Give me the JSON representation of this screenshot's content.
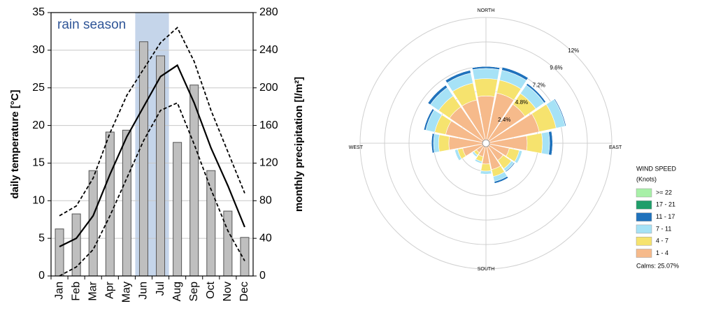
{
  "chart_data": [
    {
      "type": "bar_line",
      "ylabel": "daily temperature [°C]",
      "y2label": "monthly precipitation [l/m²]",
      "categories": [
        "Jan",
        "Feb",
        "Mar",
        "Apr",
        "May",
        "Jun",
        "Jul",
        "Aug",
        "Sep",
        "Oct",
        "Nov",
        "Dec"
      ],
      "ylim": [
        0,
        35
      ],
      "yticks": [
        0,
        5,
        10,
        15,
        20,
        25,
        30,
        35
      ],
      "y2lim": [
        0,
        280
      ],
      "y2ticks": [
        0,
        40,
        80,
        120,
        160,
        200,
        240,
        280
      ],
      "grid": true,
      "highlight": {
        "label": "rain season",
        "start": "Jun",
        "end": "Jul",
        "color": "#c5d5ea"
      },
      "series": [
        {
          "type": "bar",
          "axis": "y2",
          "color": "#bfbfbf",
          "values": [
            50,
            66,
            112,
            153,
            155,
            249,
            234,
            142,
            203,
            112,
            69,
            41
          ]
        },
        {
          "type": "line",
          "style": "dashed",
          "color": "#000000",
          "values": [
            8,
            9.3,
            13,
            19,
            24,
            27.5,
            31,
            33,
            28.5,
            22,
            16.5,
            11
          ]
        },
        {
          "type": "line",
          "style": "solid",
          "color": "#000000",
          "values": [
            3.9,
            5,
            8,
            13.5,
            18.5,
            22.5,
            26.5,
            28,
            23,
            17,
            12,
            6.5
          ]
        },
        {
          "type": "line",
          "style": "dashed",
          "color": "#000000",
          "values": [
            0,
            1.2,
            3.5,
            8,
            13,
            18,
            22,
            23,
            17.5,
            11.5,
            6,
            2
          ]
        }
      ]
    },
    {
      "type": "windrose",
      "categories": [
        "NORTH",
        null,
        null,
        null,
        "EAST",
        null,
        null,
        null,
        "SOUTH",
        null,
        null,
        null,
        "WEST",
        null,
        null,
        null
      ],
      "rlim": [
        0,
        12
      ],
      "rticks": [
        {
          "value": 2.4,
          "label": "2.4%"
        },
        {
          "value": 4.8,
          "label": "4.8%"
        },
        {
          "value": 7.2,
          "label": "7.2%"
        },
        {
          "value": 9.6,
          "label": "9.6%"
        },
        {
          "value": 12,
          "label": "12%"
        }
      ],
      "legend_title": "WIND SPEED",
      "legend_subtitle": "(Knots)",
      "calms": {
        "value": 25.07,
        "label": "Calms: 25.07%"
      },
      "series": [
        {
          "name": ">= 22",
          "color": "#a8f0a8",
          "values": [
            0,
            0,
            0,
            0,
            0,
            0,
            0,
            0,
            0,
            0,
            0,
            0,
            0,
            0,
            0,
            0
          ]
        },
        {
          "name": "17 - 21",
          "color": "#1f9e6a",
          "values": [
            0,
            0,
            0,
            0,
            0,
            0,
            0,
            0,
            0,
            0,
            0,
            0,
            0,
            0,
            0,
            0
          ]
        },
        {
          "name": "11 - 17",
          "color": "#1f72bc",
          "values": [
            0.2,
            0.3,
            0.2,
            0.1,
            0.3,
            0,
            0.1,
            0.2,
            0,
            0,
            0,
            0,
            0.2,
            0.2,
            0.3,
            0.3
          ]
        },
        {
          "name": "7 - 11",
          "color": "#a6e2f6",
          "values": [
            1.0,
            1.0,
            1.0,
            0.9,
            0.7,
            0.3,
            0.3,
            0.5,
            0.3,
            0.2,
            0.2,
            0.3,
            0.5,
            0.9,
            1.0,
            1.0
          ]
        },
        {
          "name": "4 - 7",
          "color": "#f6e36e",
          "values": [
            1.7,
            1.3,
            1.3,
            1.7,
            1.5,
            1.0,
            1.0,
            0.7,
            0.7,
            0.5,
            0.3,
            0.5,
            1.0,
            1.1,
            1.3,
            1.7
          ]
        },
        {
          "name": "1 - 4",
          "color": "#f6ba8b",
          "values": [
            4.3,
            4.7,
            4.3,
            5.0,
            3.7,
            2.0,
            1.7,
            2.3,
            1.7,
            1.0,
            0.8,
            2.0,
            3.3,
            3.7,
            4.0,
            4.0
          ]
        }
      ]
    }
  ]
}
